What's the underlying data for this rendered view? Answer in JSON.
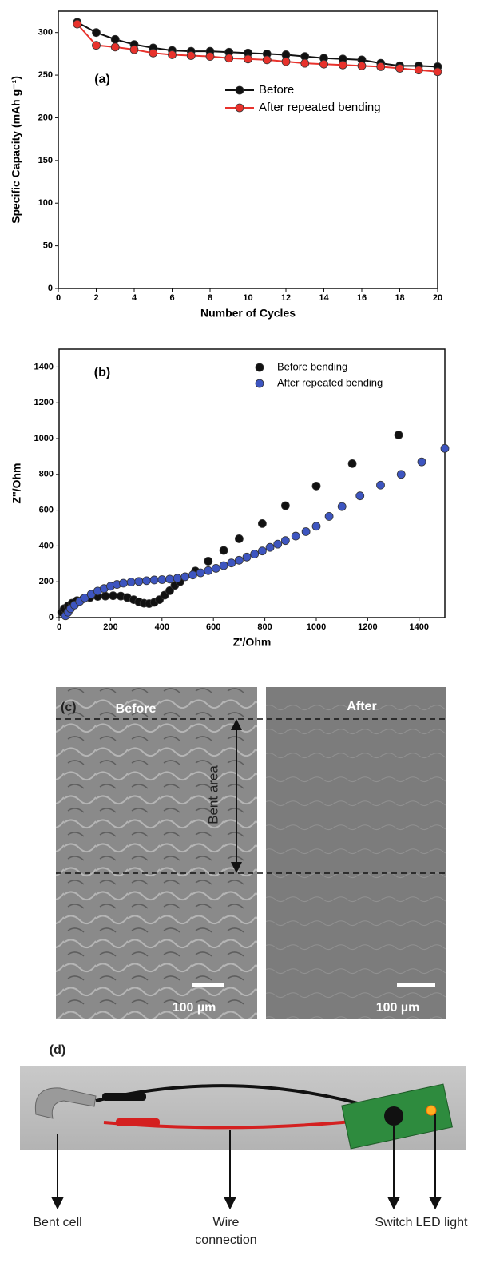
{
  "chart_data": [
    {
      "type": "line",
      "annotation": "(a)",
      "x_label": "Number of Cycles",
      "y_label": "Specific Capacity (mAh g⁻¹)",
      "x": [
        1,
        2,
        3,
        4,
        5,
        6,
        7,
        8,
        9,
        10,
        11,
        12,
        13,
        14,
        15,
        16,
        17,
        18,
        19,
        20
      ],
      "series": [
        {
          "name": "Before",
          "color": "#111111",
          "values": [
            312,
            300,
            292,
            286,
            282,
            279,
            278,
            278,
            277,
            276,
            275,
            274,
            272,
            270,
            269,
            268,
            264,
            261,
            261,
            260
          ]
        },
        {
          "name": "After repeated bending",
          "color": "#e8322c",
          "values": [
            310,
            285,
            283,
            280,
            276,
            274,
            273,
            272,
            270,
            269,
            268,
            266,
            264,
            263,
            262,
            261,
            260,
            258,
            256,
            254
          ]
        }
      ],
      "xlim": [
        0,
        20
      ],
      "xticks": [
        0,
        2,
        4,
        6,
        8,
        10,
        12,
        14,
        16,
        18,
        20
      ],
      "ylim": [
        0,
        325
      ],
      "yticks": [
        0,
        50,
        100,
        150,
        200,
        250,
        300
      ]
    },
    {
      "type": "scatter",
      "annotation": "(b)",
      "x_label": "Z'/Ohm",
      "y_label": "Z''/Ohm",
      "series": [
        {
          "name": "Before bending",
          "color": "#111111",
          "x": [
            10,
            20,
            35,
            50,
            70,
            95,
            120,
            150,
            180,
            210,
            240,
            265,
            290,
            310,
            330,
            350,
            370,
            390,
            410,
            430,
            450,
            470,
            530,
            580,
            640,
            700,
            790,
            880,
            1000,
            1140,
            1320
          ],
          "values": [
            30,
            50,
            65,
            80,
            95,
            105,
            112,
            118,
            120,
            122,
            120,
            112,
            100,
            88,
            80,
            78,
            85,
            100,
            125,
            150,
            180,
            200,
            260,
            315,
            375,
            440,
            525,
            625,
            735,
            860,
            1020
          ]
        },
        {
          "name": "After repeated bending",
          "color": "#3d55c0",
          "x": [
            25,
            35,
            45,
            60,
            80,
            100,
            125,
            150,
            175,
            200,
            225,
            250,
            280,
            310,
            340,
            370,
            400,
            430,
            460,
            490,
            520,
            550,
            580,
            610,
            640,
            670,
            700,
            730,
            760,
            790,
            820,
            850,
            880,
            920,
            960,
            1000,
            1050,
            1100,
            1170,
            1250,
            1330,
            1410,
            1500
          ],
          "values": [
            10,
            30,
            50,
            70,
            90,
            110,
            130,
            148,
            162,
            175,
            185,
            192,
            198,
            202,
            206,
            210,
            212,
            215,
            220,
            228,
            238,
            250,
            262,
            275,
            290,
            305,
            320,
            338,
            355,
            372,
            392,
            410,
            430,
            455,
            480,
            510,
            565,
            620,
            680,
            740,
            800,
            870,
            945
          ]
        }
      ],
      "xlim": [
        0,
        1500
      ],
      "xticks": [
        0,
        200,
        400,
        600,
        800,
        1000,
        1200,
        1400
      ],
      "ylim": [
        0,
        1500
      ],
      "yticks": [
        0,
        200,
        400,
        600,
        800,
        1000,
        1200,
        1400
      ]
    }
  ],
  "panel_c": {
    "label": "(c)",
    "left_caption": "Before",
    "right_caption": "After",
    "arrow_label": "Bent area",
    "scale_left": "100 µm",
    "scale_right": "100 µm"
  },
  "panel_d": {
    "label": "(d)",
    "callouts": [
      "Bent cell",
      "Wire connection",
      "Switch",
      "LED light"
    ]
  }
}
